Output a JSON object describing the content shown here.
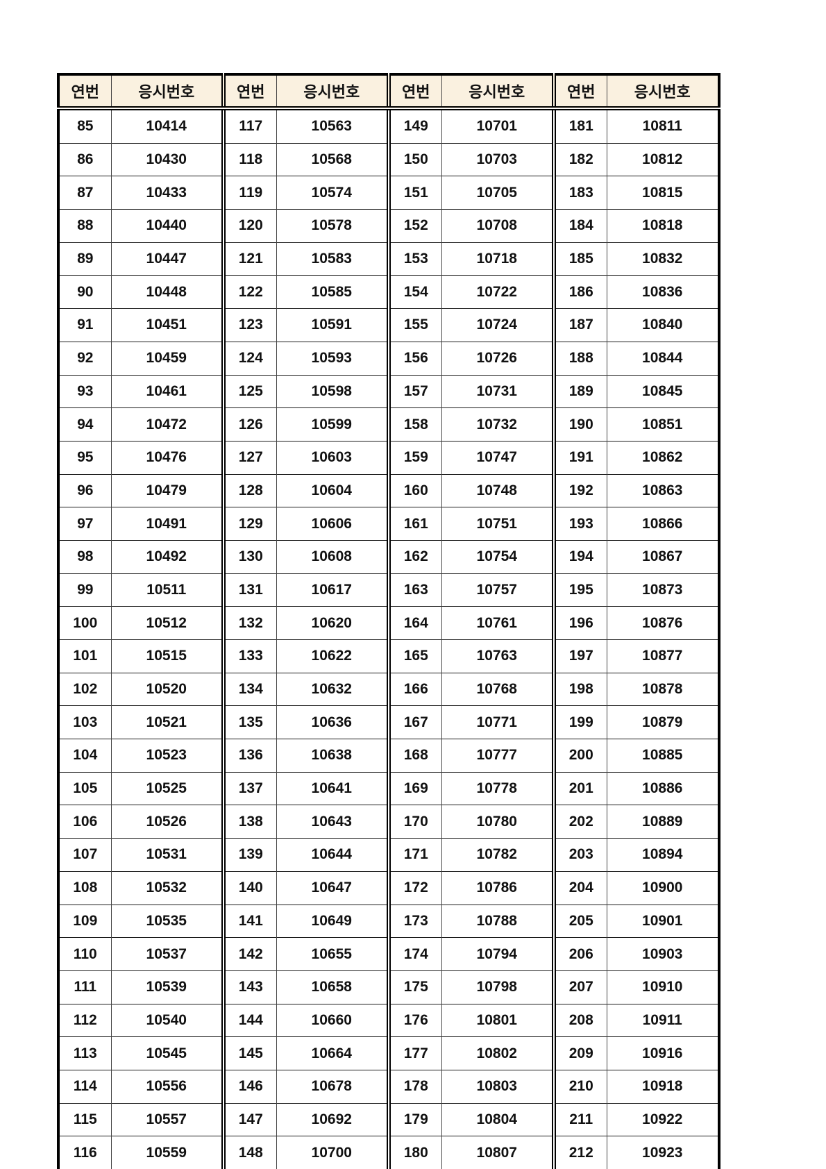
{
  "colors": {
    "header_bg": "#FAF1E0",
    "border": "#000000",
    "text": "#111111",
    "page_bg": "#FFFFFF"
  },
  "table": {
    "header_seq_label": "연번",
    "header_num_label": "응시번호",
    "group_count": 4,
    "rows_per_group": 32,
    "groups": [
      {
        "rows": [
          {
            "seq": "85",
            "num": "10414"
          },
          {
            "seq": "86",
            "num": "10430"
          },
          {
            "seq": "87",
            "num": "10433"
          },
          {
            "seq": "88",
            "num": "10440"
          },
          {
            "seq": "89",
            "num": "10447"
          },
          {
            "seq": "90",
            "num": "10448"
          },
          {
            "seq": "91",
            "num": "10451"
          },
          {
            "seq": "92",
            "num": "10459"
          },
          {
            "seq": "93",
            "num": "10461"
          },
          {
            "seq": "94",
            "num": "10472"
          },
          {
            "seq": "95",
            "num": "10476"
          },
          {
            "seq": "96",
            "num": "10479"
          },
          {
            "seq": "97",
            "num": "10491"
          },
          {
            "seq": "98",
            "num": "10492"
          },
          {
            "seq": "99",
            "num": "10511"
          },
          {
            "seq": "100",
            "num": "10512"
          },
          {
            "seq": "101",
            "num": "10515"
          },
          {
            "seq": "102",
            "num": "10520"
          },
          {
            "seq": "103",
            "num": "10521"
          },
          {
            "seq": "104",
            "num": "10523"
          },
          {
            "seq": "105",
            "num": "10525"
          },
          {
            "seq": "106",
            "num": "10526"
          },
          {
            "seq": "107",
            "num": "10531"
          },
          {
            "seq": "108",
            "num": "10532"
          },
          {
            "seq": "109",
            "num": "10535"
          },
          {
            "seq": "110",
            "num": "10537"
          },
          {
            "seq": "111",
            "num": "10539"
          },
          {
            "seq": "112",
            "num": "10540"
          },
          {
            "seq": "113",
            "num": "10545"
          },
          {
            "seq": "114",
            "num": "10556"
          },
          {
            "seq": "115",
            "num": "10557"
          },
          {
            "seq": "116",
            "num": "10559"
          }
        ]
      },
      {
        "rows": [
          {
            "seq": "117",
            "num": "10563"
          },
          {
            "seq": "118",
            "num": "10568"
          },
          {
            "seq": "119",
            "num": "10574"
          },
          {
            "seq": "120",
            "num": "10578"
          },
          {
            "seq": "121",
            "num": "10583"
          },
          {
            "seq": "122",
            "num": "10585"
          },
          {
            "seq": "123",
            "num": "10591"
          },
          {
            "seq": "124",
            "num": "10593"
          },
          {
            "seq": "125",
            "num": "10598"
          },
          {
            "seq": "126",
            "num": "10599"
          },
          {
            "seq": "127",
            "num": "10603"
          },
          {
            "seq": "128",
            "num": "10604"
          },
          {
            "seq": "129",
            "num": "10606"
          },
          {
            "seq": "130",
            "num": "10608"
          },
          {
            "seq": "131",
            "num": "10617"
          },
          {
            "seq": "132",
            "num": "10620"
          },
          {
            "seq": "133",
            "num": "10622"
          },
          {
            "seq": "134",
            "num": "10632"
          },
          {
            "seq": "135",
            "num": "10636"
          },
          {
            "seq": "136",
            "num": "10638"
          },
          {
            "seq": "137",
            "num": "10641"
          },
          {
            "seq": "138",
            "num": "10643"
          },
          {
            "seq": "139",
            "num": "10644"
          },
          {
            "seq": "140",
            "num": "10647"
          },
          {
            "seq": "141",
            "num": "10649"
          },
          {
            "seq": "142",
            "num": "10655"
          },
          {
            "seq": "143",
            "num": "10658"
          },
          {
            "seq": "144",
            "num": "10660"
          },
          {
            "seq": "145",
            "num": "10664"
          },
          {
            "seq": "146",
            "num": "10678"
          },
          {
            "seq": "147",
            "num": "10692"
          },
          {
            "seq": "148",
            "num": "10700"
          }
        ]
      },
      {
        "rows": [
          {
            "seq": "149",
            "num": "10701"
          },
          {
            "seq": "150",
            "num": "10703"
          },
          {
            "seq": "151",
            "num": "10705"
          },
          {
            "seq": "152",
            "num": "10708"
          },
          {
            "seq": "153",
            "num": "10718"
          },
          {
            "seq": "154",
            "num": "10722"
          },
          {
            "seq": "155",
            "num": "10724"
          },
          {
            "seq": "156",
            "num": "10726"
          },
          {
            "seq": "157",
            "num": "10731"
          },
          {
            "seq": "158",
            "num": "10732"
          },
          {
            "seq": "159",
            "num": "10747"
          },
          {
            "seq": "160",
            "num": "10748"
          },
          {
            "seq": "161",
            "num": "10751"
          },
          {
            "seq": "162",
            "num": "10754"
          },
          {
            "seq": "163",
            "num": "10757"
          },
          {
            "seq": "164",
            "num": "10761"
          },
          {
            "seq": "165",
            "num": "10763"
          },
          {
            "seq": "166",
            "num": "10768"
          },
          {
            "seq": "167",
            "num": "10771"
          },
          {
            "seq": "168",
            "num": "10777"
          },
          {
            "seq": "169",
            "num": "10778"
          },
          {
            "seq": "170",
            "num": "10780"
          },
          {
            "seq": "171",
            "num": "10782"
          },
          {
            "seq": "172",
            "num": "10786"
          },
          {
            "seq": "173",
            "num": "10788"
          },
          {
            "seq": "174",
            "num": "10794"
          },
          {
            "seq": "175",
            "num": "10798"
          },
          {
            "seq": "176",
            "num": "10801"
          },
          {
            "seq": "177",
            "num": "10802"
          },
          {
            "seq": "178",
            "num": "10803"
          },
          {
            "seq": "179",
            "num": "10804"
          },
          {
            "seq": "180",
            "num": "10807"
          }
        ]
      },
      {
        "rows": [
          {
            "seq": "181",
            "num": "10811"
          },
          {
            "seq": "182",
            "num": "10812"
          },
          {
            "seq": "183",
            "num": "10815"
          },
          {
            "seq": "184",
            "num": "10818"
          },
          {
            "seq": "185",
            "num": "10832"
          },
          {
            "seq": "186",
            "num": "10836"
          },
          {
            "seq": "187",
            "num": "10840"
          },
          {
            "seq": "188",
            "num": "10844"
          },
          {
            "seq": "189",
            "num": "10845"
          },
          {
            "seq": "190",
            "num": "10851"
          },
          {
            "seq": "191",
            "num": "10862"
          },
          {
            "seq": "192",
            "num": "10863"
          },
          {
            "seq": "193",
            "num": "10866"
          },
          {
            "seq": "194",
            "num": "10867"
          },
          {
            "seq": "195",
            "num": "10873"
          },
          {
            "seq": "196",
            "num": "10876"
          },
          {
            "seq": "197",
            "num": "10877"
          },
          {
            "seq": "198",
            "num": "10878"
          },
          {
            "seq": "199",
            "num": "10879"
          },
          {
            "seq": "200",
            "num": "10885"
          },
          {
            "seq": "201",
            "num": "10886"
          },
          {
            "seq": "202",
            "num": "10889"
          },
          {
            "seq": "203",
            "num": "10894"
          },
          {
            "seq": "204",
            "num": "10900"
          },
          {
            "seq": "205",
            "num": "10901"
          },
          {
            "seq": "206",
            "num": "10903"
          },
          {
            "seq": "207",
            "num": "10910"
          },
          {
            "seq": "208",
            "num": "10911"
          },
          {
            "seq": "209",
            "num": "10916"
          },
          {
            "seq": "210",
            "num": "10918"
          },
          {
            "seq": "211",
            "num": "10922"
          },
          {
            "seq": "212",
            "num": "10923"
          }
        ]
      }
    ]
  }
}
